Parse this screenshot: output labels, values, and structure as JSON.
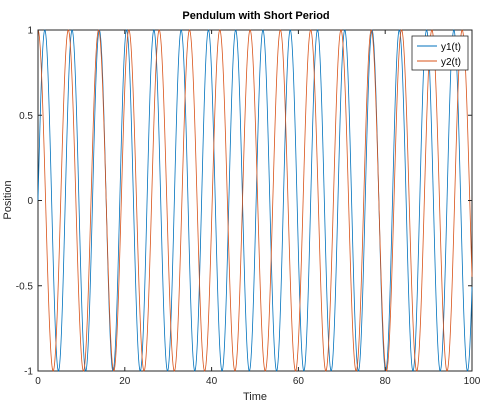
{
  "chart_data": {
    "type": "line",
    "title": "Pendulum with Short Period",
    "xlabel": "Time",
    "ylabel": "Position",
    "xlim": [
      0,
      100
    ],
    "ylim": [
      -1,
      1
    ],
    "xticks": [
      0,
      20,
      40,
      60,
      80,
      100
    ],
    "xtick_labels": [
      "0",
      "20",
      "40",
      "60",
      "80",
      "100"
    ],
    "yticks": [
      -1,
      -0.5,
      0,
      0.5,
      1
    ],
    "ytick_labels": [
      "-1",
      "-0.5",
      "0",
      "0.5",
      "1"
    ],
    "grid": false,
    "legend_position": "top-right",
    "series": [
      {
        "name": "y1(t)",
        "color": "#0072BD",
        "function": "sin",
        "angular_frequency": 1.0,
        "x_step": 0.1
      },
      {
        "name": "y2(t)",
        "color": "#D95319",
        "function": "cos",
        "angular_frequency": 0.9,
        "x_step": 0.1
      }
    ]
  }
}
